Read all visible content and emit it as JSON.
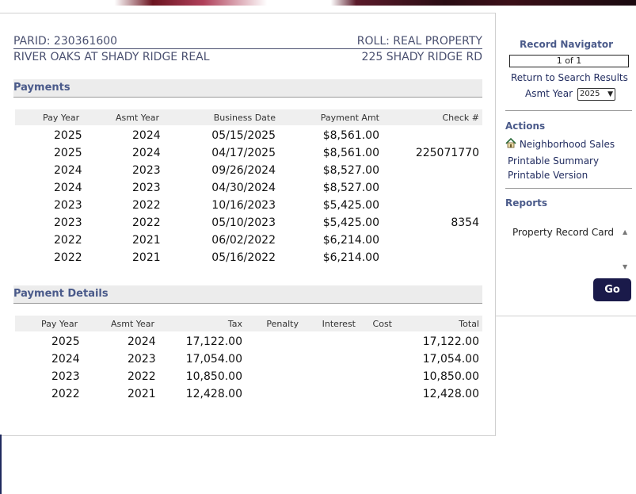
{
  "header": {
    "parid": "PARID: 230361600",
    "roll": "ROLL: REAL PROPERTY",
    "owner": "RIVER OAKS AT SHADY RIDGE REAL",
    "address": "225 SHADY RIDGE RD"
  },
  "payments": {
    "title": "Payments",
    "columns": [
      "Pay Year",
      "Asmt Year",
      "Business Date",
      "Payment Amt",
      "Check #"
    ],
    "rows": [
      [
        "2025",
        "2024",
        "05/15/2025",
        "$8,561.00",
        ""
      ],
      [
        "2025",
        "2024",
        "04/17/2025",
        "$8,561.00",
        "225071770"
      ],
      [
        "2024",
        "2023",
        "09/26/2024",
        "$8,527.00",
        ""
      ],
      [
        "2024",
        "2023",
        "04/30/2024",
        "$8,527.00",
        ""
      ],
      [
        "2023",
        "2022",
        "10/16/2023",
        "$5,425.00",
        ""
      ],
      [
        "2023",
        "2022",
        "05/10/2023",
        "$5,425.00",
        "8354"
      ],
      [
        "2022",
        "2021",
        "06/02/2022",
        "$6,214.00",
        ""
      ],
      [
        "2022",
        "2021",
        "05/16/2022",
        "$6,214.00",
        ""
      ]
    ]
  },
  "payment_details": {
    "title": "Payment Details",
    "columns": [
      "Pay Year",
      "Asmt Year",
      "Tax",
      "Penalty",
      "Interest",
      "Cost",
      "Total"
    ],
    "rows": [
      [
        "2025",
        "2024",
        "17,122.00",
        "",
        "",
        "",
        "17,122.00"
      ],
      [
        "2024",
        "2023",
        "17,054.00",
        "",
        "",
        "",
        "17,054.00"
      ],
      [
        "2023",
        "2022",
        "10,850.00",
        "",
        "",
        "",
        "10,850.00"
      ],
      [
        "2022",
        "2021",
        "12,428.00",
        "",
        "",
        "",
        "12,428.00"
      ]
    ]
  },
  "sidebar": {
    "navigator_title": "Record Navigator",
    "navigator_position": "1 of 1",
    "return_link": "Return to Search Results",
    "asmt_year_label": "Asmt Year",
    "asmt_year_value": "2025",
    "actions_title": "Actions",
    "actions": [
      "Neighborhood Sales",
      "Printable Summary",
      "Printable Version"
    ],
    "reports_title": "Reports",
    "reports_options": [
      "Property Record Card"
    ],
    "go_label": "Go"
  },
  "icons": {
    "neighborhood_sales": "house-icon"
  },
  "colors": {
    "accent": "#4a5a8a",
    "go_button": "#1a1a4a"
  }
}
